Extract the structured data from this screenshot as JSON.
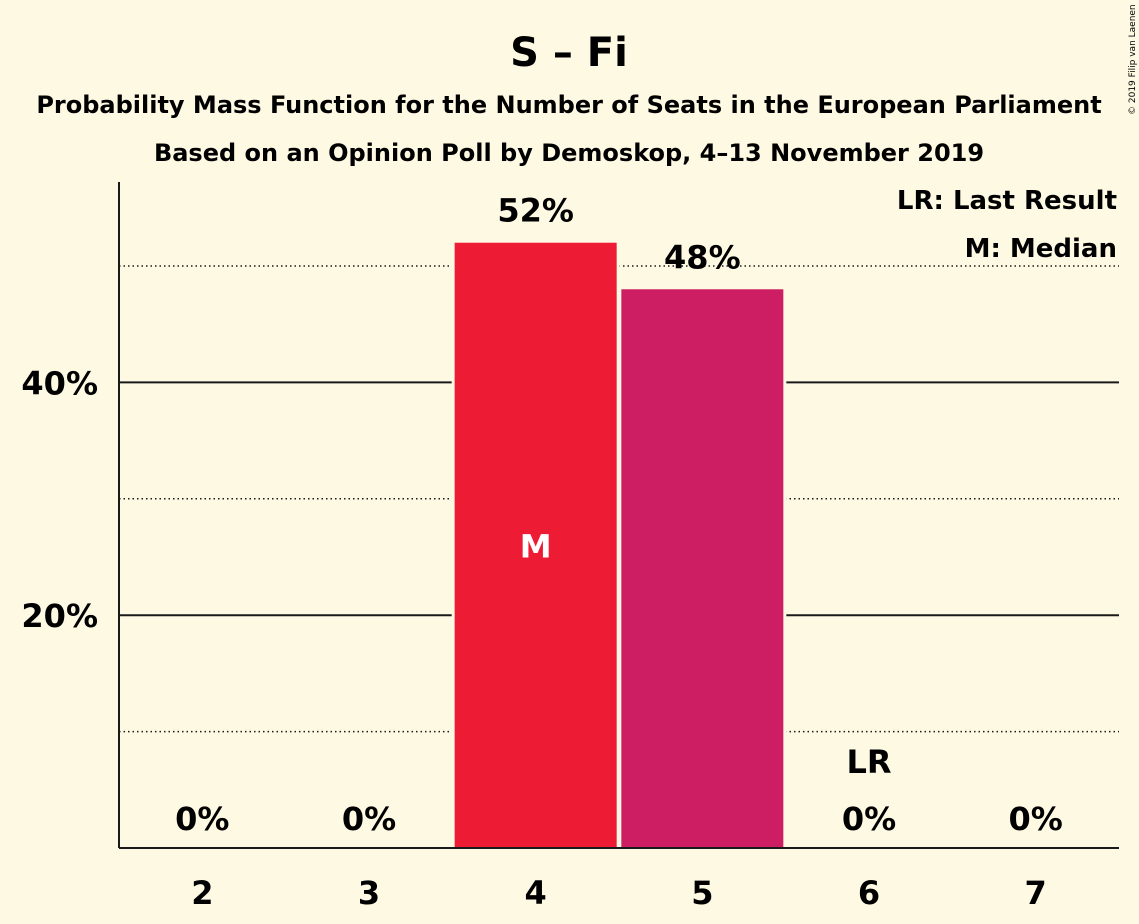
{
  "title": "S – Fi",
  "subtitle1": "Probability Mass Function for the Number of Seats in the European Parliament",
  "subtitle2": "Based on an Opinion Poll by Demoskop, 4–13 November 2019",
  "legend": {
    "last_result": "LR: Last Result",
    "median": "M: Median"
  },
  "copyright": "© 2019 Filip van Laenen",
  "chart_data": {
    "type": "bar",
    "categories": [
      "2",
      "3",
      "4",
      "5",
      "6",
      "7"
    ],
    "values": [
      0,
      0,
      52,
      48,
      0,
      0
    ],
    "value_labels": [
      "0%",
      "0%",
      "52%",
      "48%",
      "0%",
      "0%"
    ],
    "bar_colors": [
      "#ed1b34",
      "#ed1b34",
      "#ed1b34",
      "#cd1d63",
      "#ed1b34",
      "#ed1b34"
    ],
    "ylim": [
      0,
      57
    ],
    "yticks_major": [
      20,
      40
    ],
    "ytick_labels": [
      "20%",
      "40%"
    ],
    "ygrid_minor": [
      10,
      30,
      50
    ],
    "median_category": "4",
    "median_mark": "M",
    "last_result_category": "6",
    "last_result_mark": "LR"
  }
}
